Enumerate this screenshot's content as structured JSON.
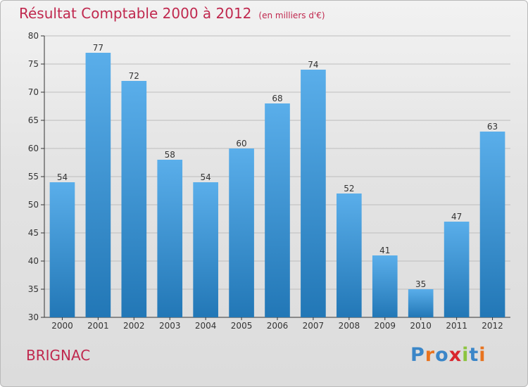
{
  "title": "Résultat Comptable 2000 à 2012",
  "unit_note": "(en milliers d'€)",
  "place_name": "BRIGNAC",
  "logo_text": "Proxiti",
  "colors": {
    "title": "#c0284e",
    "bar_light": "#5aaeea",
    "bar_dark": "#2277b6",
    "axis": "#333333",
    "grid": "#bdbdbd",
    "logo": [
      "#3a86c8",
      "#e8731f",
      "#3a86c8",
      "#d9252d",
      "#8cc43f",
      "#3a86c8",
      "#e8731f"
    ]
  },
  "chart_data": {
    "type": "bar",
    "title": "Résultat Comptable 2000 à 2012",
    "xlabel": "",
    "ylabel": "",
    "ylim": [
      30,
      80
    ],
    "yticks": [
      30,
      35,
      40,
      45,
      50,
      55,
      60,
      65,
      70,
      75,
      80
    ],
    "grid": true,
    "categories": [
      "2000",
      "2001",
      "2002",
      "2003",
      "2004",
      "2005",
      "2006",
      "2007",
      "2008",
      "2009",
      "2010",
      "2011",
      "2012"
    ],
    "values": [
      54,
      77,
      72,
      58,
      54,
      60,
      68,
      74,
      52,
      41,
      35,
      47,
      63
    ]
  }
}
